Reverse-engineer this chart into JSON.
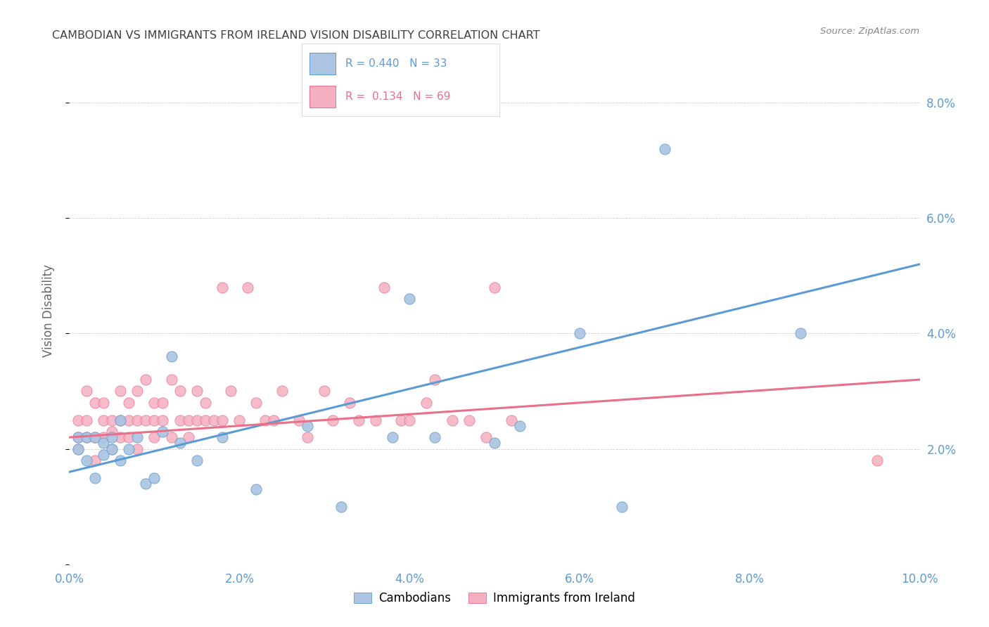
{
  "title": "CAMBODIAN VS IMMIGRANTS FROM IRELAND VISION DISABILITY CORRELATION CHART",
  "source": "Source: ZipAtlas.com",
  "ylabel": "Vision Disability",
  "xlim": [
    0.0,
    0.1
  ],
  "ylim": [
    0.0,
    0.088
  ],
  "xticks": [
    0.0,
    0.02,
    0.04,
    0.06,
    0.08,
    0.1
  ],
  "yticks": [
    0.0,
    0.02,
    0.04,
    0.06,
    0.08
  ],
  "xticklabels": [
    "0.0%",
    "2.0%",
    "4.0%",
    "6.0%",
    "8.0%",
    "10.0%"
  ],
  "yticklabels_right": [
    "",
    "2.0%",
    "4.0%",
    "6.0%",
    "8.0%"
  ],
  "legend_labels": [
    "Cambodians",
    "Immigrants from Ireland"
  ],
  "R_cambodian": 0.44,
  "N_cambodian": 33,
  "R_ireland": 0.134,
  "N_ireland": 69,
  "color_cambodian": "#aac4e2",
  "color_ireland": "#f5afc0",
  "line_color_cambodian": "#5b9bd5",
  "line_color_ireland": "#e8708a",
  "background_color": "#ffffff",
  "grid_color": "#d0d0d0",
  "title_color": "#404040",
  "tick_color": "#5b9bd5",
  "cambodian_x": [
    0.001,
    0.001,
    0.002,
    0.002,
    0.003,
    0.003,
    0.004,
    0.004,
    0.005,
    0.005,
    0.006,
    0.006,
    0.007,
    0.008,
    0.009,
    0.01,
    0.011,
    0.012,
    0.013,
    0.015,
    0.018,
    0.022,
    0.028,
    0.032,
    0.038,
    0.04,
    0.043,
    0.05,
    0.053,
    0.06,
    0.065,
    0.07,
    0.086
  ],
  "cambodian_y": [
    0.022,
    0.02,
    0.022,
    0.018,
    0.022,
    0.015,
    0.021,
    0.019,
    0.022,
    0.02,
    0.018,
    0.025,
    0.02,
    0.022,
    0.014,
    0.015,
    0.023,
    0.036,
    0.021,
    0.018,
    0.022,
    0.013,
    0.024,
    0.01,
    0.022,
    0.046,
    0.022,
    0.021,
    0.024,
    0.04,
    0.01,
    0.072,
    0.04
  ],
  "ireland_x": [
    0.001,
    0.001,
    0.001,
    0.002,
    0.002,
    0.002,
    0.003,
    0.003,
    0.003,
    0.004,
    0.004,
    0.004,
    0.005,
    0.005,
    0.005,
    0.006,
    0.006,
    0.006,
    0.007,
    0.007,
    0.007,
    0.008,
    0.008,
    0.008,
    0.009,
    0.009,
    0.01,
    0.01,
    0.01,
    0.011,
    0.011,
    0.012,
    0.012,
    0.013,
    0.013,
    0.014,
    0.014,
    0.015,
    0.015,
    0.016,
    0.016,
    0.017,
    0.018,
    0.018,
    0.019,
    0.02,
    0.021,
    0.022,
    0.023,
    0.024,
    0.025,
    0.027,
    0.028,
    0.03,
    0.031,
    0.033,
    0.034,
    0.036,
    0.037,
    0.039,
    0.04,
    0.042,
    0.043,
    0.045,
    0.047,
    0.049,
    0.05,
    0.052,
    0.095
  ],
  "ireland_y": [
    0.022,
    0.025,
    0.02,
    0.025,
    0.03,
    0.022,
    0.028,
    0.022,
    0.018,
    0.028,
    0.022,
    0.025,
    0.023,
    0.025,
    0.02,
    0.025,
    0.03,
    0.022,
    0.025,
    0.022,
    0.028,
    0.025,
    0.02,
    0.03,
    0.025,
    0.032,
    0.022,
    0.028,
    0.025,
    0.028,
    0.025,
    0.032,
    0.022,
    0.025,
    0.03,
    0.025,
    0.022,
    0.03,
    0.025,
    0.028,
    0.025,
    0.025,
    0.025,
    0.048,
    0.03,
    0.025,
    0.048,
    0.028,
    0.025,
    0.025,
    0.03,
    0.025,
    0.022,
    0.03,
    0.025,
    0.028,
    0.025,
    0.025,
    0.048,
    0.025,
    0.025,
    0.028,
    0.032,
    0.025,
    0.025,
    0.022,
    0.048,
    0.025,
    0.018
  ],
  "line_cambodian_x0": 0.0,
  "line_cambodian_y0": 0.016,
  "line_cambodian_x1": 0.1,
  "line_cambodian_y1": 0.052,
  "line_ireland_x0": 0.0,
  "line_ireland_y0": 0.022,
  "line_ireland_x1": 0.1,
  "line_ireland_y1": 0.032
}
